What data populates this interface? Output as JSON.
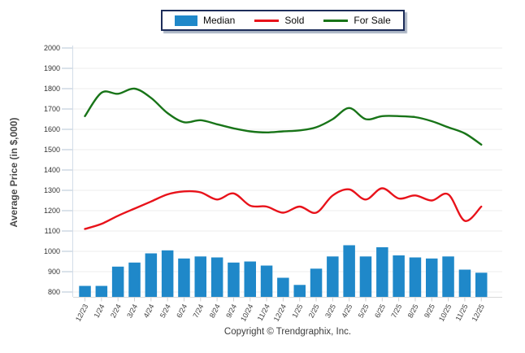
{
  "legend": {
    "items": [
      {
        "label": "Median",
        "type": "bar",
        "color": "#1f88c9"
      },
      {
        "label": "Sold",
        "type": "line",
        "color": "#e8121a"
      },
      {
        "label": "For Sale",
        "type": "line",
        "color": "#187418"
      }
    ]
  },
  "footer": {
    "copyright": "Copyright © Trendgraphix, Inc."
  },
  "chart_data": {
    "type": "bar",
    "subtype": "combo-bar-and-lines",
    "title": "",
    "xlabel": "",
    "ylabel": "Average Price (in $,000)",
    "ylim": [
      776,
      2000
    ],
    "yticks": [
      800,
      900,
      1000,
      1100,
      1200,
      1300,
      1400,
      1500,
      1600,
      1700,
      1800,
      1900,
      2000
    ],
    "grid": true,
    "legend_position": "top-center",
    "categories": [
      "12/23",
      "1/24",
      "2/24",
      "3/24",
      "4/24",
      "5/24",
      "6/24",
      "7/24",
      "8/24",
      "9/24",
      "10/24",
      "11/24",
      "12/24",
      "1/25",
      "2/25",
      "3/25",
      "4/25",
      "5/25",
      "6/25",
      "7/25",
      "8/25",
      "9/25",
      "10/25",
      "11/25",
      "12/25"
    ],
    "series": [
      {
        "name": "Median",
        "type": "bar",
        "color": "#1f88c9",
        "values": [
          830,
          830,
          925,
          945,
          990,
          1005,
          965,
          975,
          970,
          945,
          950,
          930,
          870,
          835,
          915,
          975,
          1030,
          975,
          1020,
          980,
          970,
          965,
          975,
          910,
          895
        ]
      },
      {
        "name": "Sold",
        "type": "line",
        "color": "#e8121a",
        "values": [
          1110,
          1135,
          1175,
          1210,
          1245,
          1280,
          1295,
          1290,
          1255,
          1285,
          1225,
          1220,
          1190,
          1220,
          1190,
          1275,
          1305,
          1255,
          1310,
          1260,
          1275,
          1250,
          1280,
          1150,
          1220
        ]
      },
      {
        "name": "For Sale",
        "type": "line",
        "color": "#187418",
        "values": [
          1665,
          1780,
          1775,
          1800,
          1755,
          1680,
          1635,
          1645,
          1625,
          1605,
          1590,
          1585,
          1590,
          1595,
          1610,
          1650,
          1705,
          1650,
          1665,
          1665,
          1660,
          1640,
          1610,
          1580,
          1525
        ]
      }
    ]
  }
}
